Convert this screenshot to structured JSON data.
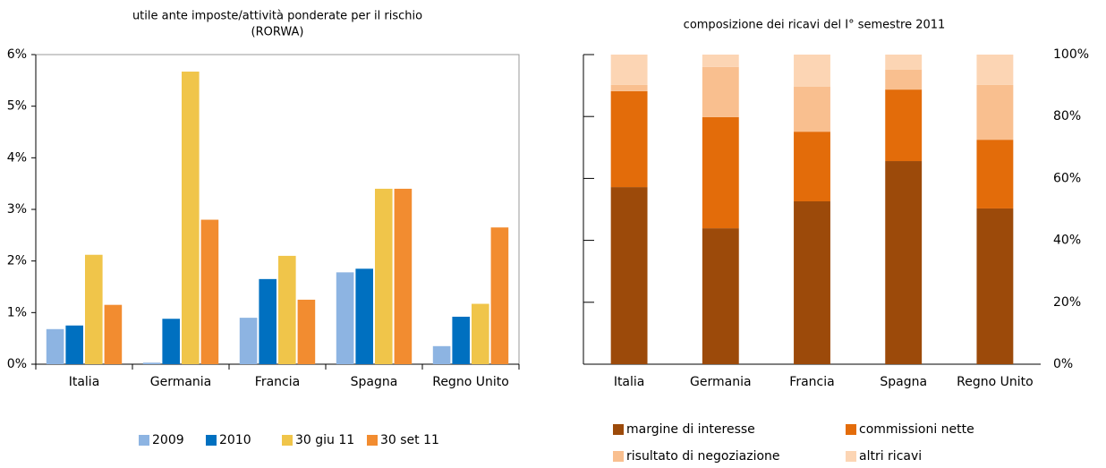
{
  "chart_data": [
    {
      "type": "bar",
      "title": [
        "utile ante imposte/attività ponderate per il rischio",
        "(RORWA)"
      ],
      "categories": [
        "Italia",
        "Germania",
        "Francia",
        "Spagna",
        "Regno Unito"
      ],
      "series": [
        {
          "name": "2009",
          "color": "#8db4e2",
          "values": [
            0.68,
            0.03,
            0.9,
            1.78,
            0.35
          ]
        },
        {
          "name": "2010",
          "color": "#0070c0",
          "values": [
            0.75,
            0.88,
            1.65,
            1.85,
            0.92
          ]
        },
        {
          "name": "30 giu 11",
          "color": "#f0c54a",
          "values": [
            2.12,
            5.67,
            2.1,
            3.4,
            1.17
          ]
        },
        {
          "name": "30 set  11",
          "color": "#f28c30",
          "values": [
            1.15,
            2.8,
            1.25,
            3.4,
            2.65
          ]
        }
      ],
      "ylim": [
        0,
        6
      ],
      "yticks": [
        {
          "value": 0,
          "label": "0%"
        },
        {
          "value": 1,
          "label": "1%"
        },
        {
          "value": 2,
          "label": "2%"
        },
        {
          "value": 3,
          "label": "3%"
        },
        {
          "value": 4,
          "label": "4%"
        },
        {
          "value": 5,
          "label": "5%"
        },
        {
          "value": 6,
          "label": "6%"
        }
      ],
      "y_axis_side": "left",
      "grid": false,
      "legend": "bottom"
    },
    {
      "type": "stacked_bar",
      "title": [
        "composizione dei ricavi  del I° semestre 2011"
      ],
      "categories": [
        "Italia",
        "Germania",
        "Francia",
        "Spagna",
        "Regno Unito"
      ],
      "series": [
        {
          "name": "margine di interesse",
          "color": "#9c4a0a",
          "values": [
            57.2,
            43.9,
            52.6,
            65.6,
            50.3
          ]
        },
        {
          "name": "commissioni nette",
          "color": "#e36c0a",
          "values": [
            31,
            35.9,
            22.5,
            23.1,
            22.2
          ]
        },
        {
          "name": "risultato di negoziazione",
          "color": "#f9bf8f",
          "values": [
            2,
            16.2,
            14.5,
            6.4,
            17.7
          ]
        },
        {
          "name": "altri ricavi",
          "color": "#fcd5b4",
          "values": [
            9.8,
            4,
            10.4,
            4.9,
            9.8
          ]
        }
      ],
      "ylim": [
        0,
        100
      ],
      "yticks": [
        {
          "value": 0,
          "label": "0%"
        },
        {
          "value": 20,
          "label": "20%"
        },
        {
          "value": 40,
          "label": "40%"
        },
        {
          "value": 60,
          "label": "60%"
        },
        {
          "value": 80,
          "label": "80%"
        },
        {
          "value": 100,
          "label": "100%"
        }
      ],
      "y_axis_side": "right",
      "grid": false,
      "legend": "bottom"
    }
  ]
}
